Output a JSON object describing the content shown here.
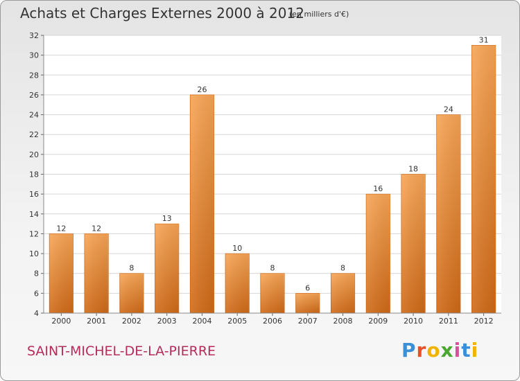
{
  "header": {
    "title": "Achats et Charges Externes 2000 à 2012",
    "unit": "(en milliers d'€)"
  },
  "footer": {
    "commune": "SAINT-MICHEL-DE-LA-PIERRE",
    "logo_text": "Proxiti",
    "logo_colors": [
      "#3b8fd6",
      "#e8502a",
      "#f0b400",
      "#4aa832",
      "#d94f9c",
      "#3b8fd6",
      "#f0b400"
    ]
  },
  "chart_data": {
    "type": "bar",
    "title": "Achats et Charges Externes 2000 à 2012",
    "subtitle": "(en milliers d'€)",
    "xlabel": "",
    "ylabel": "",
    "categories": [
      "2000",
      "2001",
      "2002",
      "2003",
      "2004",
      "2005",
      "2006",
      "2007",
      "2008",
      "2009",
      "2010",
      "2011",
      "2012"
    ],
    "values": [
      12,
      12,
      8,
      13,
      26,
      10,
      8,
      6,
      8,
      16,
      18,
      24,
      31
    ],
    "ylim": [
      4,
      32
    ],
    "yticks": [
      4,
      6,
      8,
      10,
      12,
      14,
      16,
      18,
      20,
      22,
      24,
      26,
      28,
      30,
      32
    ],
    "grid": true,
    "bar_color": "#e8872e"
  }
}
